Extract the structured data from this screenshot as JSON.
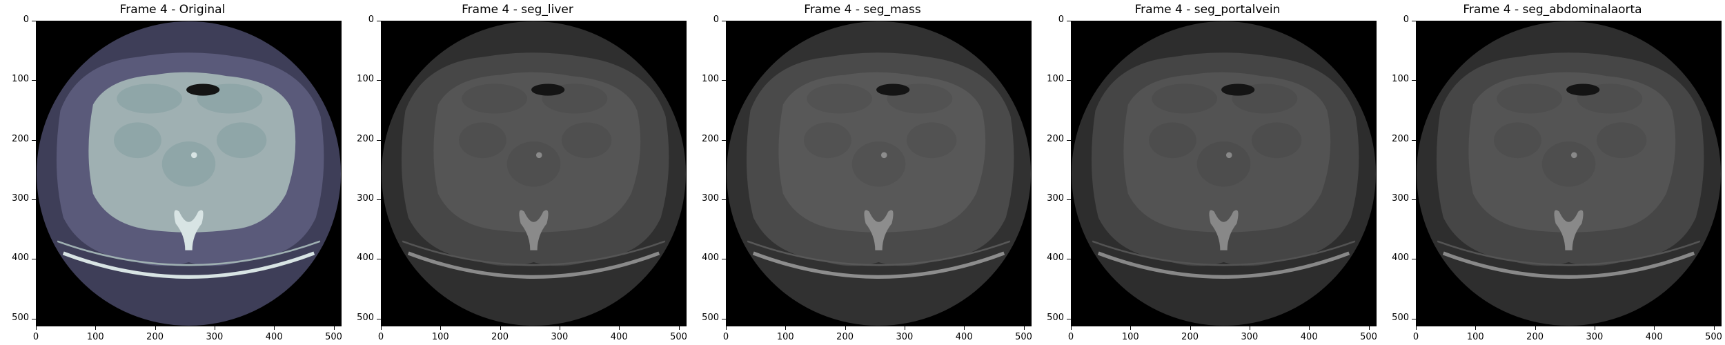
{
  "figure": {
    "panels": [
      {
        "title": "Frame 4 - Original",
        "colormap": "bone",
        "tone": {
          "body": "#5a5a7a",
          "organ": "#8fa6a8",
          "fat": "#9fb0b2",
          "bone": "#d8e4e4",
          "circle": "#3e3e58"
        }
      },
      {
        "title": "Frame 4 - seg_liver",
        "colormap": "gray",
        "tone": {
          "body": "#474747",
          "organ": "#4f4f4f",
          "fat": "#555555",
          "bone": "#8a8a8a",
          "circle": "#2f2f2f"
        }
      },
      {
        "title": "Frame 4 - seg_mass",
        "colormap": "gray",
        "tone": {
          "body": "#4a4a4a",
          "organ": "#525252",
          "fat": "#585858",
          "bone": "#8d8d8d",
          "circle": "#313131"
        }
      },
      {
        "title": "Frame 4 - seg_portalvein",
        "colormap": "gray",
        "tone": {
          "body": "#454545",
          "organ": "#4d4d4d",
          "fat": "#535353",
          "bone": "#888888",
          "circle": "#2d2d2d"
        }
      },
      {
        "title": "Frame 4 - seg_abdominalaorta",
        "colormap": "gray",
        "tone": {
          "body": "#464646",
          "organ": "#4e4e4e",
          "fat": "#545454",
          "bone": "#898989",
          "circle": "#2e2e2e"
        }
      }
    ],
    "xticks": [
      "0",
      "100",
      "200",
      "300",
      "400",
      "500"
    ],
    "yticks": [
      "0",
      "100",
      "200",
      "300",
      "400",
      "500"
    ],
    "axis_range": [
      0,
      511
    ]
  }
}
